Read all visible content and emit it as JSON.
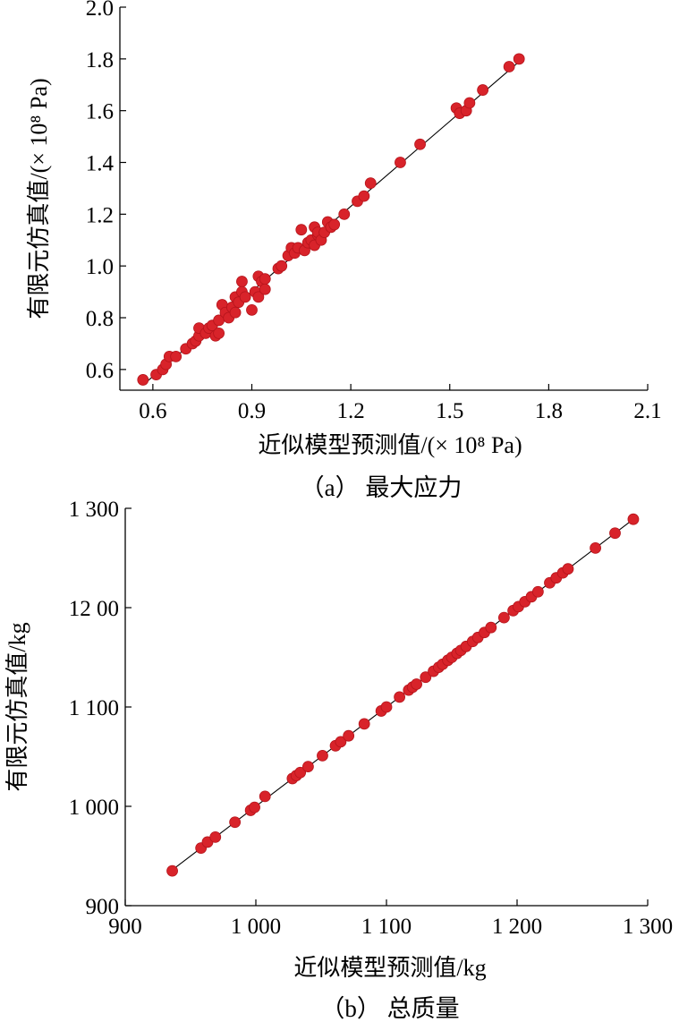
{
  "colors": {
    "point": "#d8232a",
    "point_stroke": "#b5141b",
    "axis": "#000000",
    "fit_line": "#000000"
  },
  "chart_data": [
    {
      "type": "scatter",
      "caption": "（a） 最大应力",
      "xlabel": "近似模型预测值/(× 10⁸ Pa)",
      "ylabel": "有限元仿真值/(× 10⁸ Pa)",
      "xlim": [
        0.5,
        2.1
      ],
      "ylim": [
        0.52,
        2.0
      ],
      "xticks": [
        0.6,
        0.9,
        1.2,
        1.5,
        1.8,
        2.1
      ],
      "xtick_labels": [
        "0.6",
        "0.9",
        "1.2",
        "1.5",
        "1.8",
        "2.1"
      ],
      "yticks": [
        0.6,
        0.8,
        1.0,
        1.2,
        1.4,
        1.6,
        1.8,
        2.0
      ],
      "ytick_labels": [
        "0.6",
        "0.8",
        "1.0",
        "1.2",
        "1.4",
        "1.6",
        "1.8",
        "2.0"
      ],
      "reference_line": [
        [
          0.57,
          0.54
        ],
        [
          1.72,
          1.8
        ]
      ],
      "points": [
        [
          0.57,
          0.56
        ],
        [
          0.61,
          0.58
        ],
        [
          0.63,
          0.6
        ],
        [
          0.64,
          0.62
        ],
        [
          0.65,
          0.65
        ],
        [
          0.67,
          0.65
        ],
        [
          0.7,
          0.68
        ],
        [
          0.72,
          0.7
        ],
        [
          0.73,
          0.71
        ],
        [
          0.74,
          0.73
        ],
        [
          0.74,
          0.76
        ],
        [
          0.76,
          0.74
        ],
        [
          0.77,
          0.76
        ],
        [
          0.78,
          0.77
        ],
        [
          0.79,
          0.73
        ],
        [
          0.8,
          0.74
        ],
        [
          0.8,
          0.79
        ],
        [
          0.81,
          0.85
        ],
        [
          0.82,
          0.82
        ],
        [
          0.83,
          0.8
        ],
        [
          0.84,
          0.84
        ],
        [
          0.85,
          0.82
        ],
        [
          0.85,
          0.88
        ],
        [
          0.86,
          0.86
        ],
        [
          0.87,
          0.94
        ],
        [
          0.87,
          0.9
        ],
        [
          0.88,
          0.88
        ],
        [
          0.9,
          0.83
        ],
        [
          0.91,
          0.9
        ],
        [
          0.92,
          0.88
        ],
        [
          0.92,
          0.96
        ],
        [
          0.93,
          0.94
        ],
        [
          0.94,
          0.95
        ],
        [
          0.94,
          0.91
        ],
        [
          0.98,
          0.99
        ],
        [
          0.99,
          1.0
        ],
        [
          1.01,
          1.04
        ],
        [
          1.02,
          1.07
        ],
        [
          1.03,
          1.05
        ],
        [
          1.04,
          1.07
        ],
        [
          1.05,
          1.14
        ],
        [
          1.06,
          1.06
        ],
        [
          1.07,
          1.09
        ],
        [
          1.08,
          1.1
        ],
        [
          1.09,
          1.08
        ],
        [
          1.09,
          1.15
        ],
        [
          1.1,
          1.12
        ],
        [
          1.1,
          1.13
        ],
        [
          1.11,
          1.1
        ],
        [
          1.12,
          1.13
        ],
        [
          1.13,
          1.17
        ],
        [
          1.14,
          1.15
        ],
        [
          1.15,
          1.16
        ],
        [
          1.18,
          1.2
        ],
        [
          1.22,
          1.25
        ],
        [
          1.24,
          1.27
        ],
        [
          1.26,
          1.32
        ],
        [
          1.35,
          1.4
        ],
        [
          1.41,
          1.47
        ],
        [
          1.52,
          1.61
        ],
        [
          1.53,
          1.59
        ],
        [
          1.55,
          1.6
        ],
        [
          1.56,
          1.63
        ],
        [
          1.6,
          1.68
        ],
        [
          1.68,
          1.77
        ],
        [
          1.71,
          1.8
        ]
      ]
    },
    {
      "type": "scatter",
      "caption": "（b） 总质量",
      "xlabel": "近似模型预测值/kg",
      "ylabel": "有限元仿真值/kg",
      "xlim": [
        900,
        1300
      ],
      "ylim": [
        900,
        1300
      ],
      "xticks": [
        900,
        1000,
        1100,
        1200,
        1300
      ],
      "xtick_labels": [
        "900",
        "1 000",
        "1 100",
        "1 200",
        "1 300"
      ],
      "yticks": [
        900,
        1000,
        1100,
        1200,
        1300
      ],
      "ytick_labels": [
        "900",
        "1 000",
        "1 100",
        "12 00",
        "1 300"
      ],
      "reference_line": [
        [
          935,
          935
        ],
        [
          1290,
          1290
        ]
      ],
      "points": [
        [
          936,
          935
        ],
        [
          958,
          958
        ],
        [
          963,
          964
        ],
        [
          969,
          969
        ],
        [
          984,
          984
        ],
        [
          996,
          996
        ],
        [
          999,
          999
        ],
        [
          1007,
          1010
        ],
        [
          1028,
          1028
        ],
        [
          1031,
          1031
        ],
        [
          1034,
          1034
        ],
        [
          1040,
          1040
        ],
        [
          1051,
          1051
        ],
        [
          1061,
          1061
        ],
        [
          1065,
          1065
        ],
        [
          1071,
          1071
        ],
        [
          1083,
          1083
        ],
        [
          1096,
          1096
        ],
        [
          1100,
          1100
        ],
        [
          1110,
          1110
        ],
        [
          1117,
          1117
        ],
        [
          1120,
          1120
        ],
        [
          1123,
          1123
        ],
        [
          1130,
          1130
        ],
        [
          1136,
          1136
        ],
        [
          1140,
          1140
        ],
        [
          1143,
          1143
        ],
        [
          1147,
          1147
        ],
        [
          1150,
          1150
        ],
        [
          1154,
          1154
        ],
        [
          1157,
          1157
        ],
        [
          1161,
          1161
        ],
        [
          1166,
          1166
        ],
        [
          1170,
          1170
        ],
        [
          1175,
          1175
        ],
        [
          1180,
          1180
        ],
        [
          1190,
          1190
        ],
        [
          1197,
          1197
        ],
        [
          1201,
          1201
        ],
        [
          1206,
          1206
        ],
        [
          1211,
          1211
        ],
        [
          1216,
          1216
        ],
        [
          1225,
          1225
        ],
        [
          1230,
          1230
        ],
        [
          1235,
          1235
        ],
        [
          1239,
          1239
        ],
        [
          1260,
          1260
        ],
        [
          1275,
          1275
        ],
        [
          1289,
          1289
        ]
      ]
    }
  ]
}
